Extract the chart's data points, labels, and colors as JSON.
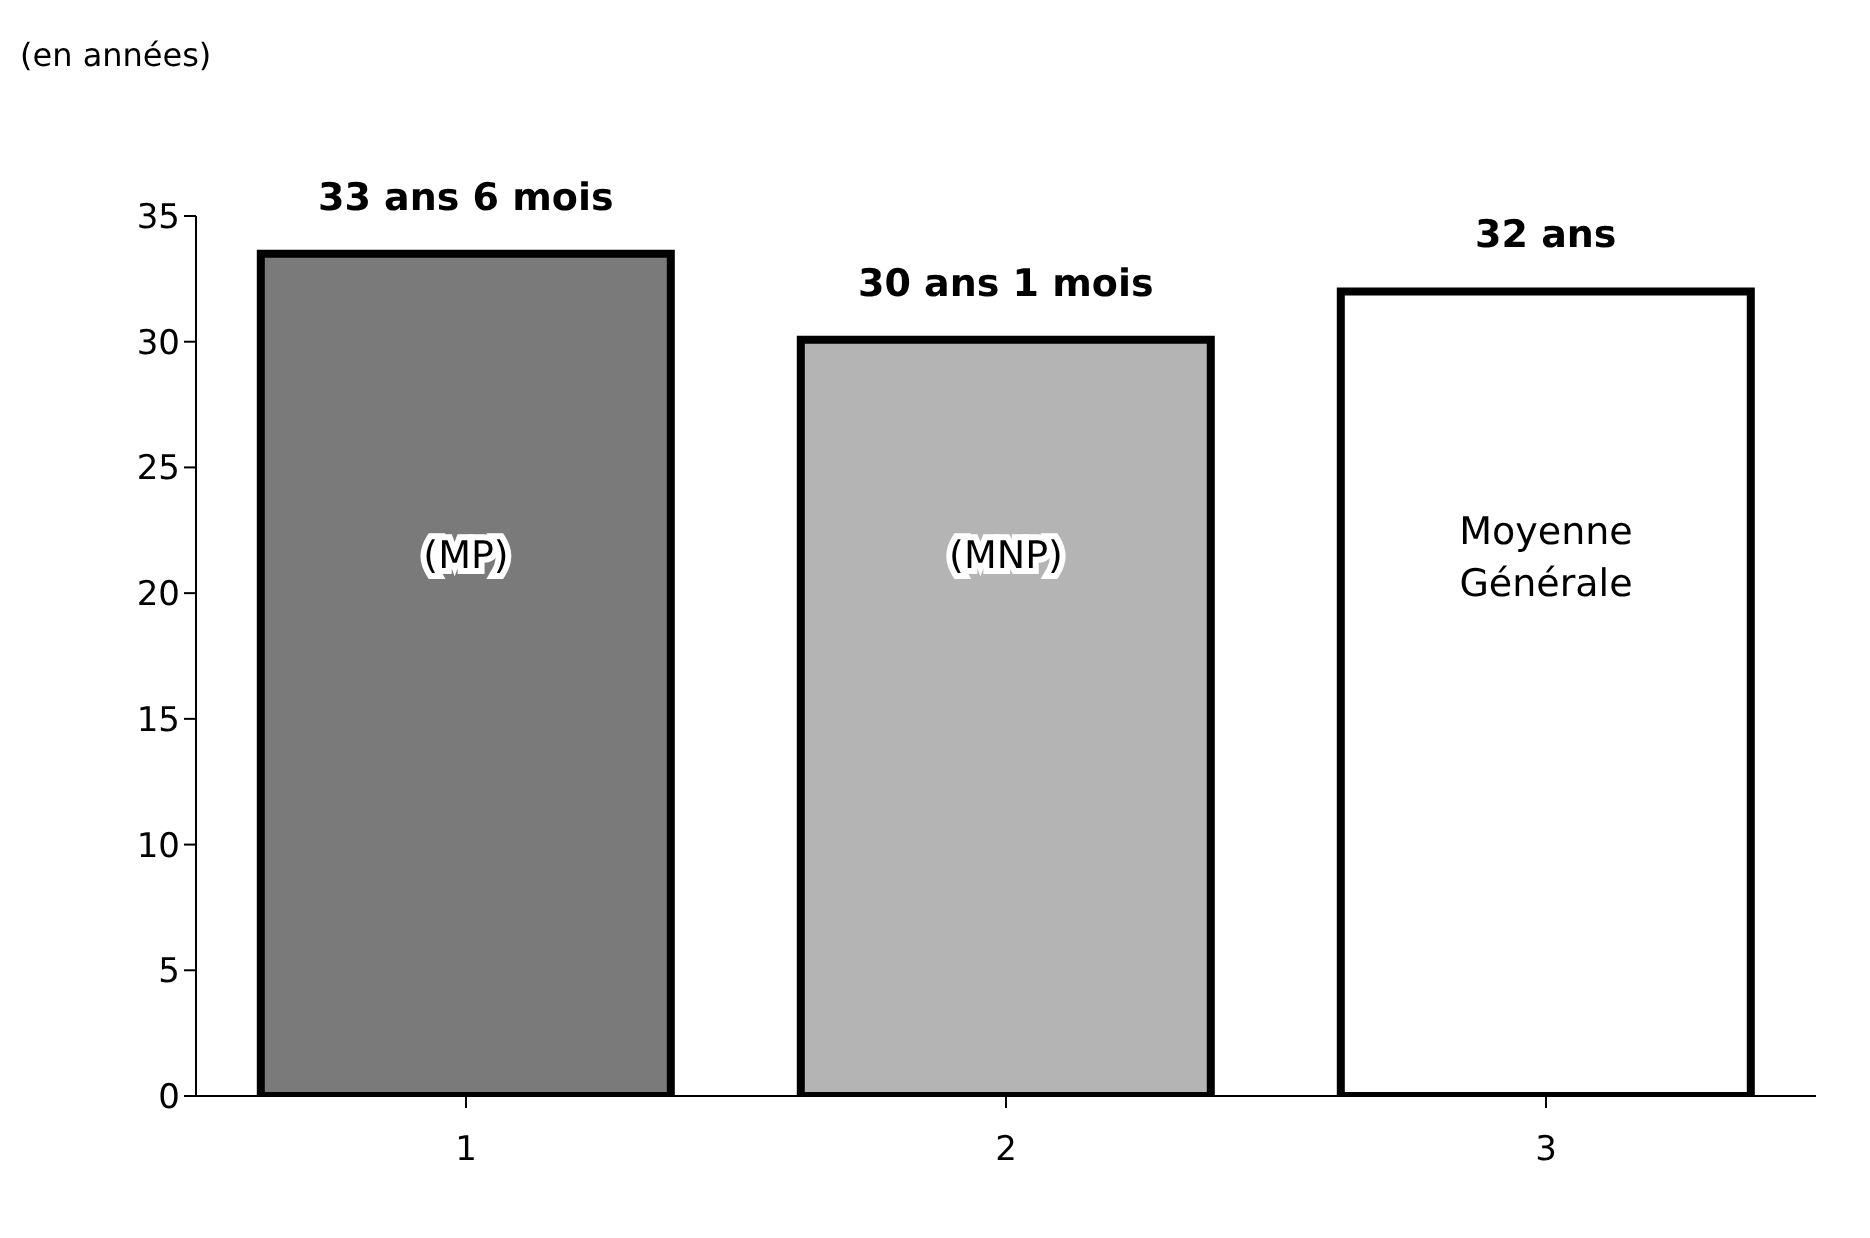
{
  "chart_data": {
    "type": "bar",
    "ylabel": "(en années)",
    "categories": [
      "1",
      "2",
      "3"
    ],
    "values": [
      33.5,
      30.08,
      32
    ],
    "value_labels": [
      "33 ans 6 mois",
      "30 ans 1 mois",
      "32 ans"
    ],
    "colors": [
      "#7a7a7a",
      "#b4b4b4",
      "#ffffff"
    ],
    "ylim": [
      0,
      35
    ],
    "yticks": [
      0,
      5,
      10,
      15,
      20,
      25,
      30,
      35
    ],
    "annotations": [
      "(MP)",
      "(MNP)",
      "Moyenne Générale"
    ]
  }
}
